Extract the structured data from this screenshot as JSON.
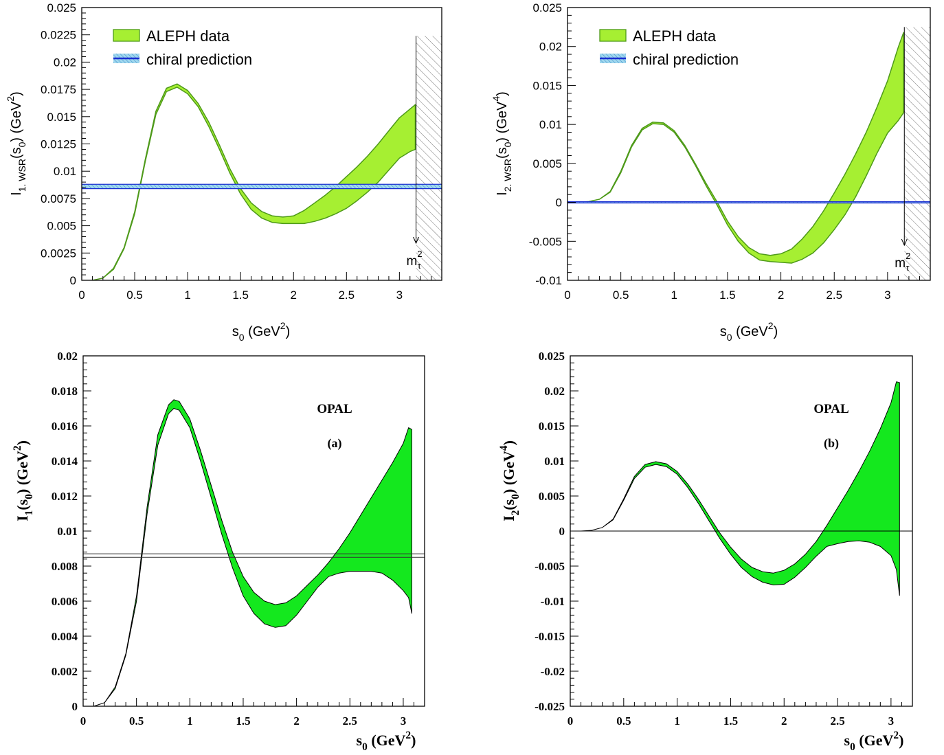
{
  "colors": {
    "aleph_fill": "#a6ef32",
    "aleph_edge": "#4e9a1a",
    "opal_fill": "#14e81e",
    "chiral_line": "#1b2fd1",
    "chiral_fill": "#5bb7e0",
    "axis": "#000000"
  },
  "chart_data": [
    {
      "id": "aleph-i1",
      "type": "area",
      "style": "aleph",
      "ylabel_main": "I",
      "ylabel_sub": "1. WSR",
      "ylabel_arg": "(s",
      "ylabel_arg_sub": "0",
      "ylabel_close": ")",
      "ylabel_unit": "(GeV",
      "ylabel_unit_sup": "2",
      "ylabel_unit_close": ")",
      "xlabel_main": "s",
      "xlabel_sub": "0",
      "xlabel_unit": "(GeV",
      "xlabel_unit_sup": "2",
      "xlabel_unit_close": ")",
      "xlim": [
        0,
        3.4
      ],
      "ylim": [
        0,
        0.025
      ],
      "xticks": [
        0,
        0.5,
        1,
        1.5,
        2,
        2.5,
        3
      ],
      "xtick_labels": [
        "0",
        "0.5",
        "1",
        "1.5",
        "2",
        "2.5",
        "3"
      ],
      "yticks": [
        0,
        0.0025,
        0.005,
        0.0075,
        0.01,
        0.0125,
        0.015,
        0.0175,
        0.02,
        0.0225,
        0.025
      ],
      "ytick_labels": [
        "0",
        "0.0025",
        "0.005",
        "0.0075",
        "0.01",
        "0.0125",
        "0.015",
        "0.0175",
        "0.02",
        "0.0225",
        "0.025"
      ],
      "legend": [
        {
          "label": "ALEPH data",
          "kind": "aleph-band"
        },
        {
          "label": "chiral prediction",
          "kind": "chiral-band"
        }
      ],
      "legend_position": "top-left",
      "hline": {
        "value": 0.0086,
        "halfwidth": 0.0002,
        "style": "chiral"
      },
      "mtau": {
        "x": 3.157,
        "label_main": "m",
        "label_sup": "2",
        "label_sub": "τ",
        "arrow_top": 0.0224,
        "arrow_bottom": 0.0034
      },
      "series": [
        {
          "x": [
            0.1,
            0.2,
            0.3,
            0.4,
            0.5,
            0.6,
            0.7,
            0.8,
            0.9,
            1.0,
            1.1,
            1.2,
            1.3,
            1.4,
            1.5,
            1.6,
            1.7,
            1.8,
            1.9,
            2.0,
            2.1,
            2.2,
            2.3,
            2.4,
            2.5,
            2.6,
            2.7,
            2.8,
            2.9,
            3.0,
            3.1,
            3.15
          ],
          "upper": [
            0.0,
            0.0002,
            0.0011,
            0.003,
            0.0063,
            0.0111,
            0.0155,
            0.0176,
            0.018,
            0.0174,
            0.0162,
            0.0145,
            0.0124,
            0.0102,
            0.0084,
            0.0071,
            0.0063,
            0.0059,
            0.0058,
            0.0059,
            0.0064,
            0.0071,
            0.0078,
            0.0086,
            0.0095,
            0.0104,
            0.0114,
            0.0125,
            0.0137,
            0.0149,
            0.0157,
            0.0161
          ],
          "lower": [
            0.0,
            0.0002,
            0.001,
            0.0029,
            0.0061,
            0.0109,
            0.0152,
            0.0173,
            0.0177,
            0.0171,
            0.0159,
            0.0141,
            0.012,
            0.0098,
            0.0079,
            0.0065,
            0.0057,
            0.0053,
            0.0052,
            0.0052,
            0.0052,
            0.0054,
            0.0057,
            0.0061,
            0.0066,
            0.0073,
            0.0081,
            0.009,
            0.0101,
            0.0112,
            0.0118,
            0.012
          ]
        }
      ]
    },
    {
      "id": "aleph-i2",
      "type": "area",
      "style": "aleph",
      "ylabel_main": "I",
      "ylabel_sub": "2. WSR",
      "ylabel_arg": "(s",
      "ylabel_arg_sub": "0",
      "ylabel_close": ")",
      "ylabel_unit": "(GeV",
      "ylabel_unit_sup": "4",
      "ylabel_unit_close": ")",
      "xlabel_main": "s",
      "xlabel_sub": "0",
      "xlabel_unit": "(GeV",
      "xlabel_unit_sup": "2",
      "xlabel_unit_close": ")",
      "xlim": [
        0,
        3.4
      ],
      "ylim": [
        -0.01,
        0.025
      ],
      "xticks": [
        0,
        0.5,
        1,
        1.5,
        2,
        2.5,
        3
      ],
      "xtick_labels": [
        "0",
        "0.5",
        "1",
        "1.5",
        "2",
        "2.5",
        "3"
      ],
      "yticks": [
        -0.01,
        -0.005,
        0,
        0.005,
        0.01,
        0.015,
        0.02,
        0.025
      ],
      "ytick_labels": [
        "-0.01",
        "-0.005",
        "0",
        "0.005",
        "0.01",
        "0.015",
        "0.02",
        "0.025"
      ],
      "legend": [
        {
          "label": "ALEPH data",
          "kind": "aleph-band"
        },
        {
          "label": "chiral prediction",
          "kind": "chiral-band"
        }
      ],
      "legend_position": "top-left",
      "hline": {
        "value": 0,
        "halfwidth": 8e-05,
        "style": "chiral"
      },
      "mtau": {
        "x": 3.157,
        "label_main": "m",
        "label_sup": "2",
        "label_sub": "τ",
        "arrow_top": 0.0225,
        "arrow_bottom": -0.0055
      },
      "series": [
        {
          "x": [
            0.0,
            0.1,
            0.2,
            0.3,
            0.4,
            0.5,
            0.6,
            0.7,
            0.8,
            0.9,
            1.0,
            1.1,
            1.2,
            1.3,
            1.4,
            1.5,
            1.6,
            1.7,
            1.8,
            1.9,
            2.0,
            2.1,
            2.2,
            2.3,
            2.4,
            2.5,
            2.6,
            2.7,
            2.8,
            2.9,
            3.0,
            3.1,
            3.15
          ],
          "upper": [
            0.0,
            0.0,
            0.0001,
            0.0004,
            0.0014,
            0.004,
            0.0073,
            0.0095,
            0.0103,
            0.0102,
            0.0092,
            0.0073,
            0.0049,
            0.0024,
            0.0001,
            -0.0024,
            -0.0044,
            -0.0058,
            -0.0066,
            -0.0068,
            -0.0066,
            -0.006,
            -0.0047,
            -0.0031,
            -0.0011,
            0.0012,
            0.0036,
            0.0062,
            0.009,
            0.0122,
            0.0156,
            0.0199,
            0.0218
          ],
          "lower": [
            0.0,
            0.0,
            0.0001,
            0.0004,
            0.0013,
            0.0038,
            0.0071,
            0.0093,
            0.0101,
            0.01,
            0.009,
            0.0071,
            0.0047,
            0.0021,
            -0.0003,
            -0.0029,
            -0.005,
            -0.0065,
            -0.0074,
            -0.0076,
            -0.0077,
            -0.0078,
            -0.0073,
            -0.0065,
            -0.0052,
            -0.0035,
            -0.0016,
            0.0007,
            0.0034,
            0.0063,
            0.0089,
            0.0105,
            0.0115
          ]
        }
      ]
    },
    {
      "id": "opal-i1",
      "type": "area",
      "style": "opal",
      "ylabel_main": "I",
      "ylabel_sub": "1",
      "ylabel_arg": "(s",
      "ylabel_arg_sub": "0",
      "ylabel_close": ")",
      "ylabel_unit": "(GeV",
      "ylabel_unit_sup": "2",
      "ylabel_unit_close": ")",
      "xlabel_main": "s",
      "xlabel_sub": "0",
      "xlabel_unit": "(GeV",
      "xlabel_unit_sup": "2",
      "xlabel_unit_close": ")",
      "xlim": [
        0,
        3.2
      ],
      "ylim": [
        0,
        0.02
      ],
      "xticks": [
        0,
        0.5,
        1,
        1.5,
        2,
        2.5,
        3
      ],
      "xtick_labels": [
        "0",
        "0.5",
        "1",
        "1.5",
        "2",
        "2.5",
        "3"
      ],
      "yticks": [
        0,
        0.002,
        0.004,
        0.006,
        0.008,
        0.01,
        0.012,
        0.014,
        0.016,
        0.018,
        0.02
      ],
      "ytick_labels": [
        "0",
        "0.002",
        "0.004",
        "0.006",
        "0.008",
        "0.01",
        "0.012",
        "0.014",
        "0.016",
        "0.018",
        "0.02"
      ],
      "annotations": [
        "OPAL",
        "(a)"
      ],
      "hline": {
        "value": 0.0086,
        "halfwidth": 0.0001,
        "style": "double"
      },
      "series": [
        {
          "x": [
            0.1,
            0.2,
            0.3,
            0.4,
            0.5,
            0.6,
            0.7,
            0.8,
            0.85,
            0.9,
            1.0,
            1.1,
            1.2,
            1.3,
            1.4,
            1.5,
            1.6,
            1.7,
            1.8,
            1.9,
            2.0,
            2.1,
            2.2,
            2.3,
            2.4,
            2.5,
            2.6,
            2.7,
            2.8,
            2.9,
            3.0,
            3.05,
            3.08
          ],
          "upper": [
            0.0,
            0.0002,
            0.0011,
            0.003,
            0.0063,
            0.0114,
            0.0155,
            0.0172,
            0.0175,
            0.0174,
            0.0164,
            0.0146,
            0.0126,
            0.0106,
            0.0088,
            0.0074,
            0.0065,
            0.006,
            0.0058,
            0.0059,
            0.0063,
            0.0069,
            0.0075,
            0.0082,
            0.009,
            0.0099,
            0.0109,
            0.0119,
            0.0129,
            0.0139,
            0.015,
            0.0159,
            0.0158
          ],
          "lower": [
            0.0,
            0.0002,
            0.001,
            0.0029,
            0.006,
            0.011,
            0.0149,
            0.0167,
            0.017,
            0.0169,
            0.0159,
            0.014,
            0.0119,
            0.0098,
            0.0079,
            0.0063,
            0.0053,
            0.0047,
            0.0045,
            0.0046,
            0.0052,
            0.006,
            0.0068,
            0.0074,
            0.0076,
            0.0077,
            0.0077,
            0.0077,
            0.0076,
            0.0072,
            0.0066,
            0.0062,
            0.0053
          ]
        }
      ]
    },
    {
      "id": "opal-i2",
      "type": "area",
      "style": "opal",
      "ylabel_main": "I",
      "ylabel_sub": "2",
      "ylabel_arg": "(s",
      "ylabel_arg_sub": "0",
      "ylabel_close": ")",
      "ylabel_unit": "(GeV",
      "ylabel_unit_sup": "4",
      "ylabel_unit_close": ")",
      "xlabel_main": "s",
      "xlabel_sub": "0",
      "xlabel_unit": "(GeV",
      "xlabel_unit_sup": "2",
      "xlabel_unit_close": ")",
      "xlim": [
        0,
        3.2
      ],
      "ylim": [
        -0.025,
        0.025
      ],
      "xticks": [
        0,
        0.5,
        1,
        1.5,
        2,
        2.5,
        3
      ],
      "xtick_labels": [
        "0",
        "0.5",
        "1",
        "1.5",
        "2",
        "2.5",
        "3"
      ],
      "yticks": [
        -0.025,
        -0.02,
        -0.015,
        -0.01,
        -0.005,
        0,
        0.005,
        0.01,
        0.015,
        0.02,
        0.025
      ],
      "ytick_labels": [
        "-0.025",
        "-0.02",
        "-0.015",
        "-0.01",
        "-0.005",
        "0",
        "0.005",
        "0.01",
        "0.015",
        "0.02",
        "0.025"
      ],
      "annotations": [
        "OPAL",
        "(b)"
      ],
      "hline": {
        "value": 0,
        "halfwidth": 0,
        "style": "single"
      },
      "series": [
        {
          "x": [
            0.0,
            0.1,
            0.2,
            0.3,
            0.4,
            0.5,
            0.6,
            0.7,
            0.8,
            0.9,
            1.0,
            1.1,
            1.2,
            1.3,
            1.4,
            1.5,
            1.6,
            1.7,
            1.8,
            1.9,
            2.0,
            2.1,
            2.2,
            2.3,
            2.4,
            2.5,
            2.6,
            2.7,
            2.8,
            2.9,
            3.0,
            3.05,
            3.08
          ],
          "upper": [
            0.0,
            0.0,
            0.0001,
            0.0005,
            0.0017,
            0.0046,
            0.0078,
            0.0095,
            0.0099,
            0.0096,
            0.0085,
            0.0067,
            0.0045,
            0.0021,
            -0.0003,
            -0.0023,
            -0.004,
            -0.0052,
            -0.0058,
            -0.006,
            -0.0056,
            -0.0047,
            -0.0033,
            -0.0015,
            0.0008,
            0.0033,
            0.0058,
            0.0085,
            0.0114,
            0.0146,
            0.0183,
            0.0213,
            0.0212
          ],
          "lower": [
            0.0,
            0.0,
            0.0001,
            0.0005,
            0.0016,
            0.0044,
            0.0075,
            0.0091,
            0.0095,
            0.0092,
            0.0081,
            0.0062,
            0.0039,
            0.0014,
            -0.0011,
            -0.0033,
            -0.0052,
            -0.0065,
            -0.0073,
            -0.0077,
            -0.0076,
            -0.0066,
            -0.0052,
            -0.0036,
            -0.0022,
            -0.0018,
            -0.0015,
            -0.0014,
            -0.0016,
            -0.0022,
            -0.0035,
            -0.0055,
            -0.0092
          ]
        }
      ]
    }
  ]
}
